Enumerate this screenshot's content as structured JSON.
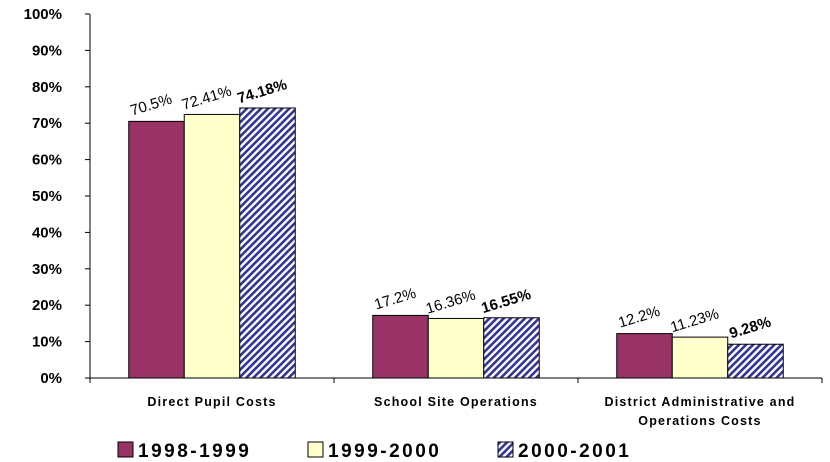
{
  "chart_data": {
    "type": "bar",
    "categories": [
      [
        "Direct Pupil Costs"
      ],
      [
        "School Site Operations"
      ],
      [
        "District Administrative and",
        "Operations Costs"
      ]
    ],
    "series": [
      {
        "name": "1998-1999",
        "values": [
          70.5,
          17.2,
          12.2
        ],
        "labels": [
          "70.5%",
          "17.2%",
          "12.2%"
        ],
        "color": "#993366",
        "pattern": "solid",
        "bold_labels": false
      },
      {
        "name": "1999-2000",
        "values": [
          72.41,
          16.36,
          11.23
        ],
        "labels": [
          "72.41%",
          "16.36%",
          "11.23%"
        ],
        "color": "#FFFFCC",
        "pattern": "solid",
        "bold_labels": false
      },
      {
        "name": "2000-2001",
        "values": [
          74.18,
          16.55,
          9.28
        ],
        "labels": [
          "74.18%",
          "16.55%",
          "9.28%"
        ],
        "color": "#333399",
        "pattern": "diagonal-hatch",
        "bold_labels": true
      }
    ],
    "y_ticks": [
      "0%",
      "10%",
      "20%",
      "30%",
      "40%",
      "50%",
      "60%",
      "70%",
      "80%",
      "90%",
      "100%"
    ],
    "ylim": [
      0,
      100
    ],
    "grid": false,
    "legend_position": "bottom",
    "data_label_rotation": "slanted"
  }
}
